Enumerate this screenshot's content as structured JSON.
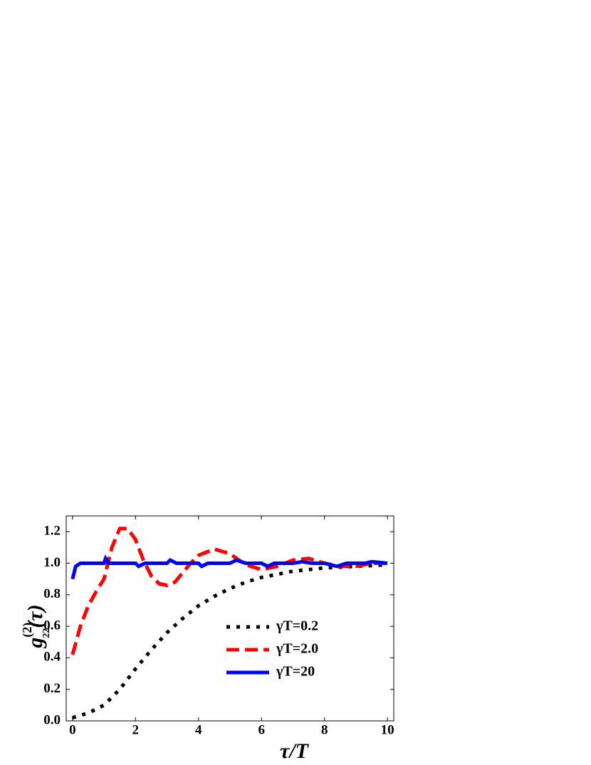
{
  "chart_data": {
    "type": "line",
    "x_label": "τ/T",
    "y_label": {
      "base": "g",
      "sup": "(2)",
      "sub": "22",
      "arg": "(τ)"
    },
    "xlim": [
      -0.2,
      10.2
    ],
    "ylim": [
      0,
      1.3
    ],
    "xticks": [
      0,
      2,
      4,
      6,
      8,
      10
    ],
    "yticks": [
      {
        "value": 0,
        "label": "0.0"
      },
      0.2,
      0.4,
      0.6,
      0.8,
      {
        "value": 1,
        "label": "1.0"
      },
      1.2
    ],
    "legend": "right",
    "series": [
      {
        "name": "γT=0.2",
        "color": "#000000",
        "linestyle": "dotted",
        "x": [
          0,
          0.5,
          1,
          1.5,
          2,
          2.5,
          3,
          3.5,
          4,
          4.5,
          5,
          5.5,
          6,
          7,
          8,
          9,
          10
        ],
        "values": [
          0.02,
          0.05,
          0.1,
          0.2,
          0.33,
          0.45,
          0.56,
          0.65,
          0.73,
          0.79,
          0.84,
          0.88,
          0.91,
          0.95,
          0.97,
          0.98,
          0.99
        ]
      },
      {
        "name": "γT=2.0",
        "color": "#ff0000",
        "linestyle": "dashed",
        "x": [
          0,
          0.25,
          0.5,
          0.75,
          1,
          1.25,
          1.5,
          1.75,
          2,
          2.25,
          2.5,
          2.75,
          3,
          3.25,
          3.5,
          3.75,
          4,
          4.5,
          5,
          5.5,
          6,
          6.5,
          7,
          7.5,
          8,
          8.5,
          9,
          9.5,
          10
        ],
        "values": [
          0.42,
          0.6,
          0.73,
          0.82,
          0.9,
          1.1,
          1.22,
          1.22,
          1.15,
          1.02,
          0.92,
          0.87,
          0.86,
          0.88,
          0.94,
          1.0,
          1.05,
          1.09,
          1.06,
          0.99,
          0.96,
          0.98,
          1.02,
          1.03,
          1.0,
          0.98,
          0.98,
          1.0,
          1.0
        ]
      },
      {
        "name": "γT=20",
        "color": "#0000ff",
        "linestyle": "solid",
        "x": [
          0,
          0.1,
          0.25,
          1,
          1.05,
          1.15,
          2,
          2.1,
          2.3,
          3,
          3.1,
          3.3,
          4,
          4.1,
          4.3,
          5,
          5.2,
          5.5,
          6,
          6.2,
          6.4,
          7,
          7.3,
          7.6,
          8,
          8.4,
          8.7,
          9.3,
          9.5,
          10
        ],
        "values": [
          0.9,
          0.98,
          1.0,
          1.0,
          1.03,
          1.0,
          1.0,
          0.98,
          1.0,
          1.0,
          1.02,
          1.0,
          1.0,
          0.98,
          1.0,
          1.0,
          1.02,
          1.0,
          1.0,
          0.98,
          1.0,
          1.0,
          1.01,
          1.0,
          1.0,
          0.98,
          1.0,
          1.0,
          1.01,
          1.0
        ]
      }
    ]
  }
}
